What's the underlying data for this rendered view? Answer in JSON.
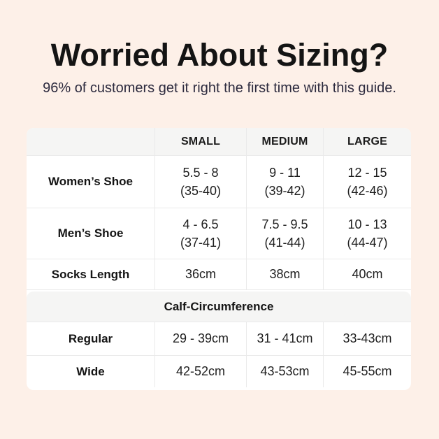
{
  "header": {
    "title": "Worried About Sizing?",
    "subtitle": "96% of customers get it right the first time with this guide."
  },
  "colors": {
    "page_background": "#fdf0e8",
    "card_background": "#ffffff",
    "header_band_background": "#f5f5f4",
    "border": "#eaeaea",
    "title_text": "#141414",
    "subtitle_text": "#2c2a3e"
  },
  "table": {
    "columns": [
      "",
      "SMALL",
      "MEDIUM",
      "LARGE"
    ],
    "rows": [
      {
        "label": "Women’s Shoe",
        "cells": [
          {
            "line1": "5.5 - 8",
            "line2": "(35-40)"
          },
          {
            "line1": "9 - 11",
            "line2": "(39-42)"
          },
          {
            "line1": "12 - 15",
            "line2": "(42-46)"
          }
        ]
      },
      {
        "label": "Men’s Shoe",
        "cells": [
          {
            "line1": "4 - 6.5",
            "line2": "(37-41)"
          },
          {
            "line1": "7.5 - 9.5",
            "line2": "(41-44)"
          },
          {
            "line1": "10 - 13",
            "line2": "(44-47)"
          }
        ]
      },
      {
        "label": "Socks Length",
        "cells": [
          "36cm",
          "38cm",
          "40cm"
        ]
      }
    ],
    "section_header": "Calf-Circumference",
    "section_rows": [
      {
        "label": "Regular",
        "cells": [
          "29 - 39cm",
          "31 - 41cm",
          "33-43cm"
        ]
      },
      {
        "label": "Wide",
        "cells": [
          "42-52cm",
          "43-53cm",
          "45-55cm"
        ]
      }
    ]
  }
}
